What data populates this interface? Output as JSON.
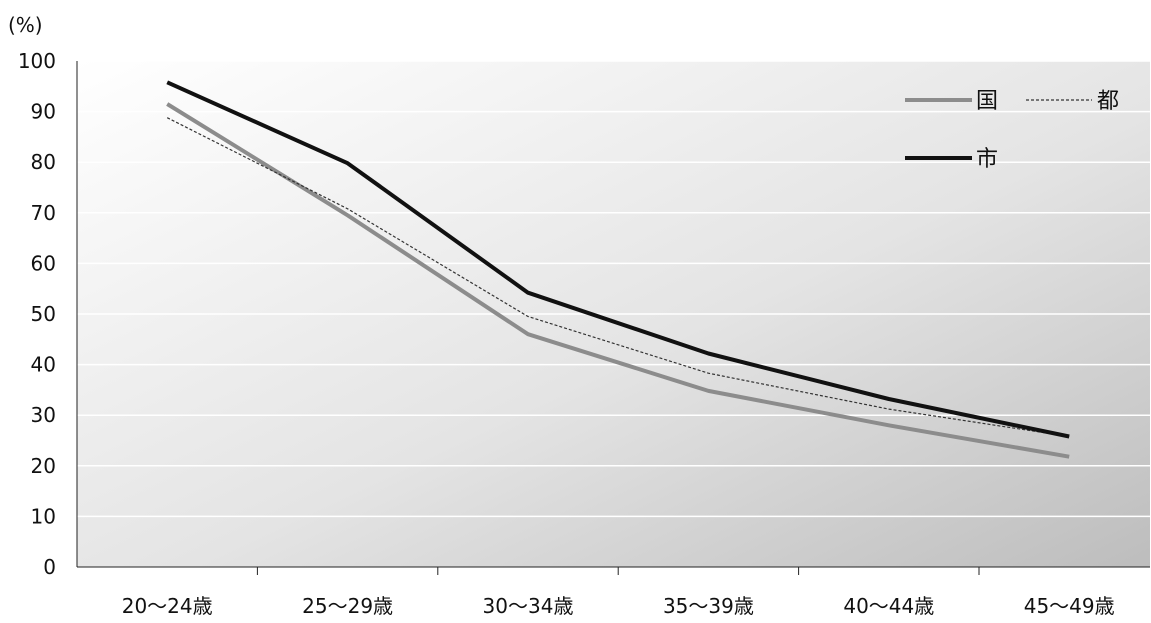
{
  "chart_data": {
    "type": "line",
    "y_unit": "(%)",
    "ylim": [
      0,
      100
    ],
    "y_ticks": [
      0,
      10,
      20,
      30,
      40,
      50,
      60,
      70,
      80,
      90,
      100
    ],
    "y_tick_labels": [
      "0",
      "10",
      "20",
      "30",
      "40",
      "50",
      "60",
      "70",
      "80",
      "90",
      "100"
    ],
    "categories": [
      "20～24歳",
      "25～29歳",
      "30～34歳",
      "35～39歳",
      "40～44歳",
      "45～49歳"
    ],
    "grid": true,
    "legend_position": "top-right",
    "series": [
      {
        "name": "国",
        "color": "#8c8c8c",
        "style": "solid",
        "values": [
          91.5,
          69.5,
          46.0,
          34.8,
          28.0,
          21.8
        ]
      },
      {
        "name": "都",
        "color": "#333333",
        "style": "dotted",
        "values": [
          88.8,
          70.8,
          49.5,
          38.3,
          31.2,
          25.8
        ]
      },
      {
        "name": "市",
        "color": "#111111",
        "style": "solid",
        "values": [
          95.8,
          79.8,
          54.2,
          42.2,
          33.2,
          25.8
        ]
      }
    ]
  }
}
